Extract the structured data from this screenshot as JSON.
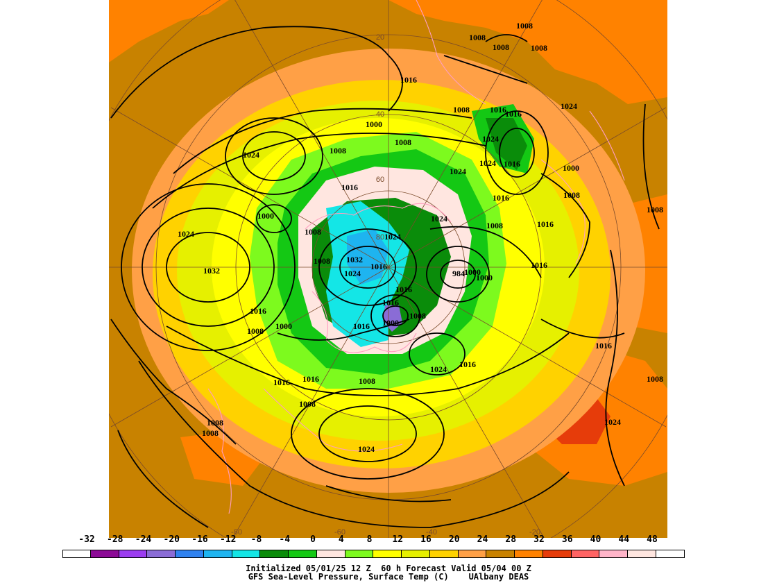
{
  "map": {
    "pressure_labels": [
      {
        "text": "1008"
      },
      {
        "text": "1008"
      },
      {
        "text": "1008"
      },
      {
        "text": "1016"
      },
      {
        "text": "1008"
      },
      {
        "text": "1016"
      },
      {
        "text": "1016"
      },
      {
        "text": "1008"
      },
      {
        "text": "1024"
      },
      {
        "text": "1024"
      },
      {
        "text": "1000"
      },
      {
        "text": "1008"
      },
      {
        "text": "1024"
      },
      {
        "text": "1008"
      },
      {
        "text": "1024"
      },
      {
        "text": "1016"
      },
      {
        "text": "1024"
      },
      {
        "text": "1016"
      },
      {
        "text": "1016"
      },
      {
        "text": "1000"
      },
      {
        "text": "1008"
      },
      {
        "text": "1024"
      },
      {
        "text": "1016"
      },
      {
        "text": "1008"
      },
      {
        "text": "1000"
      },
      {
        "text": "1008"
      },
      {
        "text": "1024"
      },
      {
        "text": "1032"
      },
      {
        "text": "1032"
      },
      {
        "text": "1024"
      },
      {
        "text": "1008"
      },
      {
        "text": "1016"
      },
      {
        "text": "1016"
      },
      {
        "text": "1000"
      },
      {
        "text": "1000"
      },
      {
        "text": "1016"
      },
      {
        "text": "1008"
      },
      {
        "text": "1024"
      },
      {
        "text": "1016"
      },
      {
        "text": "1016"
      },
      {
        "text": "1016"
      },
      {
        "text": "1008"
      },
      {
        "text": "1016"
      },
      {
        "text": "1008"
      },
      {
        "text": "1008"
      },
      {
        "text": "1008"
      },
      {
        "text": "1024"
      },
      {
        "text": "1008"
      },
      {
        "text": "1008"
      },
      {
        "text": "984"
      },
      {
        "text": "1000"
      },
      {
        "text": "1016"
      },
      {
        "text": "1024"
      },
      {
        "text": "1024"
      },
      {
        "text": "1000"
      },
      {
        "text": "1008"
      },
      {
        "text": "1016"
      },
      {
        "text": "1016"
      }
    ],
    "lat_lon_labels": [
      "20",
      "40",
      "60",
      "80",
      "-80",
      "-60",
      "-40",
      "-20"
    ]
  },
  "legend": {
    "ticks": [
      "-32",
      "-28",
      "-24",
      "-20",
      "-16",
      "-12",
      "-8",
      "-4",
      "0",
      "4",
      "8",
      "12",
      "16",
      "20",
      "24",
      "28",
      "32",
      "36",
      "40",
      "44",
      "48"
    ],
    "colors": [
      "#ffffff",
      "#8c0a96",
      "#9b3cf0",
      "#8a6cd6",
      "#2f82f0",
      "#1eb4f0",
      "#14e6e6",
      "#0a8c0a",
      "#14c814",
      "#ffe6e0",
      "#7dfa1e",
      "#ffff00",
      "#e6f000",
      "#ffd200",
      "#ffa046",
      "#c88200",
      "#ff8200",
      "#e63c0a",
      "#ff6464",
      "#ffb4c8",
      "#ffe6e0",
      "#ffffff"
    ]
  },
  "caption": {
    "line1": "Initialized 05/01/25 12 Z  60 h Forecast Valid 05/04 00 Z",
    "line2": "GFS Sea-Level Pressure, Surface Temp (C)    UAlbany DEAS"
  }
}
